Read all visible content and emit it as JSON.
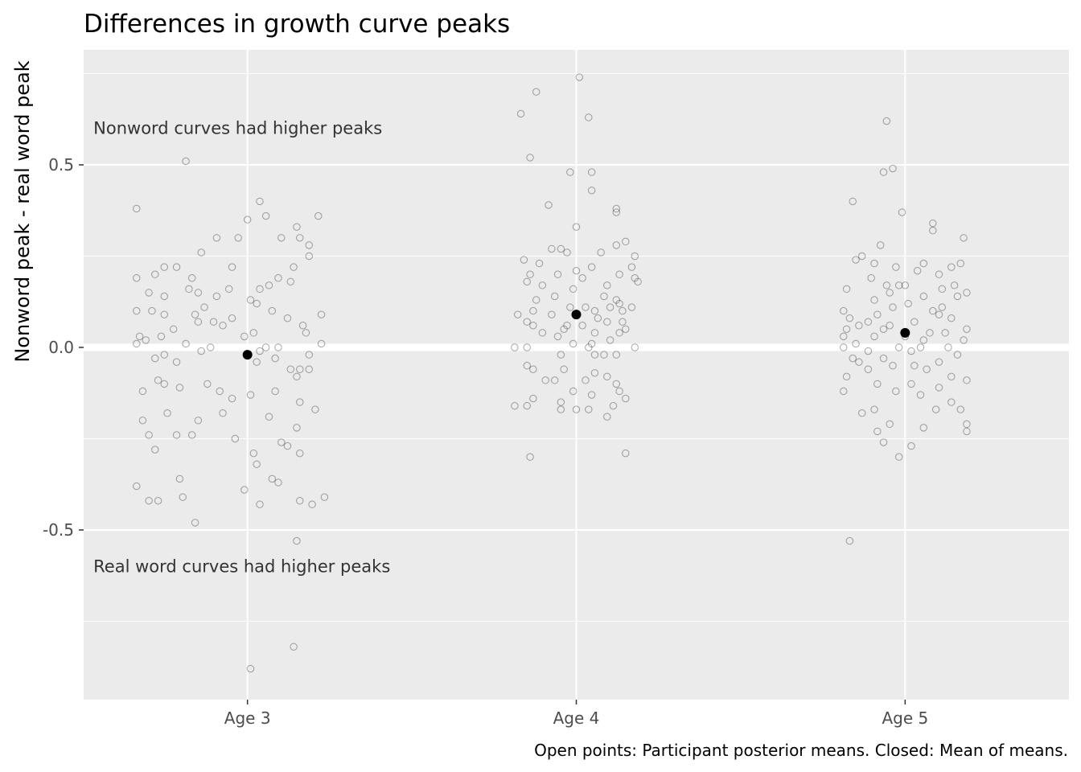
{
  "chart_data": {
    "type": "scatter",
    "title": "Differences in growth curve peaks",
    "ylabel": "Nonword peak - real word peak",
    "xlabel": "",
    "caption": "Open points: Participant posterior means. Closed: Mean of means.",
    "categories": [
      "Age 3",
      "Age 4",
      "Age 5"
    ],
    "ylim": [
      -0.97,
      0.82
    ],
    "yticks": [
      0.5,
      0.0,
      -0.5
    ],
    "ytick_labels": [
      "0.5",
      "0.0",
      "-0.5"
    ],
    "grid": true,
    "zero_line": true,
    "annotations": [
      {
        "text": "Nonword curves had higher peaks",
        "x": 0.5,
        "y": 0.6
      },
      {
        "text": "Real word curves had higher peaks",
        "x": 0.5,
        "y": -0.6
      }
    ],
    "summary_points": [
      {
        "category": "Age 3",
        "y": -0.02
      },
      {
        "category": "Age 4",
        "y": 0.09
      },
      {
        "category": "Age 5",
        "y": 0.04
      }
    ],
    "points": {
      "Age 3": [
        [
          -0.2,
          0.51
        ],
        [
          0.23,
          0.36
        ],
        [
          0.04,
          0.4
        ],
        [
          -0.36,
          0.38
        ],
        [
          -0.1,
          0.3
        ],
        [
          -0.15,
          0.26
        ],
        [
          0.16,
          0.33
        ],
        [
          0.17,
          0.3
        ],
        [
          0.2,
          0.25
        ],
        [
          0.06,
          0.36
        ],
        [
          0.0,
          0.35
        ],
        [
          -0.03,
          0.3
        ],
        [
          -0.27,
          0.22
        ],
        [
          -0.23,
          0.22
        ],
        [
          -0.3,
          0.2
        ],
        [
          -0.36,
          0.19
        ],
        [
          -0.18,
          0.19
        ],
        [
          -0.05,
          0.22
        ],
        [
          0.15,
          0.22
        ],
        [
          0.1,
          0.19
        ],
        [
          0.14,
          0.18
        ],
        [
          0.07,
          0.17
        ],
        [
          0.04,
          0.16
        ],
        [
          -0.06,
          0.16
        ],
        [
          -0.1,
          0.14
        ],
        [
          -0.16,
          0.15
        ],
        [
          -0.32,
          0.15
        ],
        [
          -0.27,
          0.14
        ],
        [
          -0.31,
          0.1
        ],
        [
          -0.27,
          0.09
        ],
        [
          -0.36,
          0.1
        ],
        [
          0.01,
          0.13
        ],
        [
          0.03,
          0.12
        ],
        [
          0.08,
          0.1
        ],
        [
          -0.14,
          0.11
        ],
        [
          -0.17,
          0.09
        ],
        [
          -0.11,
          0.07
        ],
        [
          -0.16,
          0.07
        ],
        [
          0.13,
          0.08
        ],
        [
          0.18,
          0.06
        ],
        [
          0.24,
          0.09
        ],
        [
          -0.05,
          0.08
        ],
        [
          -0.08,
          0.06
        ],
        [
          0.02,
          0.04
        ],
        [
          -0.01,
          0.03
        ],
        [
          -0.24,
          0.05
        ],
        [
          -0.28,
          0.03
        ],
        [
          -0.35,
          0.03
        ],
        [
          -0.33,
          0.02
        ],
        [
          -0.36,
          0.01
        ],
        [
          -0.2,
          0.01
        ],
        [
          0.19,
          0.04
        ],
        [
          0.24,
          0.01
        ],
        [
          0.06,
          0.0
        ],
        [
          0.1,
          0.0
        ],
        [
          -0.12,
          0.0
        ],
        [
          -0.15,
          -0.01
        ],
        [
          -0.27,
          -0.02
        ],
        [
          -0.3,
          -0.03
        ],
        [
          0.04,
          -0.01
        ],
        [
          0.09,
          -0.03
        ],
        [
          0.2,
          -0.02
        ],
        [
          -0.23,
          -0.04
        ],
        [
          0.03,
          -0.04
        ],
        [
          0.14,
          -0.06
        ],
        [
          0.17,
          -0.06
        ],
        [
          0.2,
          -0.06
        ],
        [
          -0.29,
          -0.09
        ],
        [
          -0.27,
          -0.1
        ],
        [
          -0.13,
          -0.1
        ],
        [
          -0.09,
          -0.12
        ],
        [
          -0.22,
          -0.11
        ],
        [
          -0.34,
          -0.12
        ],
        [
          0.09,
          -0.12
        ],
        [
          0.16,
          -0.08
        ],
        [
          0.22,
          -0.17
        ],
        [
          0.17,
          -0.15
        ],
        [
          -0.05,
          -0.14
        ],
        [
          0.01,
          -0.13
        ],
        [
          -0.26,
          -0.18
        ],
        [
          -0.16,
          -0.2
        ],
        [
          -0.08,
          -0.18
        ],
        [
          0.07,
          -0.19
        ],
        [
          0.16,
          -0.22
        ],
        [
          -0.34,
          -0.2
        ],
        [
          -0.32,
          -0.24
        ],
        [
          -0.23,
          -0.24
        ],
        [
          -0.18,
          -0.24
        ],
        [
          -0.04,
          -0.25
        ],
        [
          0.11,
          -0.26
        ],
        [
          0.13,
          -0.27
        ],
        [
          0.02,
          -0.29
        ],
        [
          0.03,
          -0.32
        ],
        [
          -0.3,
          -0.28
        ],
        [
          0.17,
          -0.29
        ],
        [
          -0.22,
          -0.36
        ],
        [
          -0.36,
          -0.38
        ],
        [
          -0.01,
          -0.39
        ],
        [
          0.08,
          -0.36
        ],
        [
          0.1,
          -0.37
        ],
        [
          -0.29,
          -0.42
        ],
        [
          -0.32,
          -0.42
        ],
        [
          0.21,
          -0.43
        ],
        [
          0.25,
          -0.41
        ],
        [
          0.17,
          -0.42
        ],
        [
          -0.17,
          -0.48
        ],
        [
          0.04,
          -0.43
        ],
        [
          0.16,
          -0.53
        ],
        [
          0.15,
          -0.82
        ],
        [
          0.01,
          -0.88
        ],
        [
          -0.21,
          -0.41
        ],
        [
          -0.19,
          0.16
        ],
        [
          0.11,
          0.3
        ],
        [
          0.2,
          0.28
        ]
      ],
      "Age 4": [
        [
          -0.13,
          0.7
        ],
        [
          0.01,
          0.74
        ],
        [
          -0.18,
          0.64
        ],
        [
          0.04,
          0.63
        ],
        [
          -0.15,
          0.52
        ],
        [
          -0.02,
          0.48
        ],
        [
          0.05,
          0.48
        ],
        [
          0.05,
          0.43
        ],
        [
          -0.09,
          0.39
        ],
        [
          0.13,
          0.38
        ],
        [
          0.13,
          0.37
        ],
        [
          0.0,
          0.33
        ],
        [
          0.16,
          0.29
        ],
        [
          0.13,
          0.28
        ],
        [
          -0.08,
          0.27
        ],
        [
          -0.05,
          0.27
        ],
        [
          -0.17,
          0.24
        ],
        [
          -0.12,
          0.23
        ],
        [
          -0.03,
          0.26
        ],
        [
          0.08,
          0.26
        ],
        [
          0.19,
          0.25
        ],
        [
          0.18,
          0.22
        ],
        [
          0.05,
          0.22
        ],
        [
          0.0,
          0.21
        ],
        [
          -0.15,
          0.2
        ],
        [
          -0.06,
          0.2
        ],
        [
          0.14,
          0.2
        ],
        [
          0.19,
          0.19
        ],
        [
          0.2,
          0.18
        ],
        [
          -0.16,
          0.18
        ],
        [
          -0.11,
          0.17
        ],
        [
          0.02,
          0.19
        ],
        [
          0.1,
          0.17
        ],
        [
          -0.01,
          0.16
        ],
        [
          0.09,
          0.14
        ],
        [
          0.13,
          0.13
        ],
        [
          -0.07,
          0.14
        ],
        [
          -0.13,
          0.13
        ],
        [
          0.14,
          0.12
        ],
        [
          0.03,
          0.11
        ],
        [
          0.06,
          0.1
        ],
        [
          0.11,
          0.11
        ],
        [
          -0.02,
          0.11
        ],
        [
          -0.14,
          0.1
        ],
        [
          -0.19,
          0.09
        ],
        [
          0.15,
          0.1
        ],
        [
          -0.08,
          0.09
        ],
        [
          -0.16,
          0.07
        ],
        [
          -0.14,
          0.06
        ],
        [
          0.07,
          0.08
        ],
        [
          0.1,
          0.07
        ],
        [
          0.02,
          0.06
        ],
        [
          -0.04,
          0.05
        ],
        [
          0.16,
          0.05
        ],
        [
          -0.11,
          0.04
        ],
        [
          0.06,
          0.04
        ],
        [
          0.14,
          0.04
        ],
        [
          -0.06,
          0.03
        ],
        [
          0.11,
          0.02
        ],
        [
          -0.01,
          0.01
        ],
        [
          0.05,
          0.01
        ],
        [
          -0.2,
          0.0
        ],
        [
          -0.16,
          0.0
        ],
        [
          0.04,
          0.0
        ],
        [
          0.19,
          0.0
        ],
        [
          0.09,
          -0.02
        ],
        [
          -0.05,
          -0.02
        ],
        [
          0.13,
          -0.02
        ],
        [
          -0.16,
          -0.05
        ],
        [
          -0.14,
          -0.06
        ],
        [
          -0.04,
          -0.06
        ],
        [
          0.06,
          -0.07
        ],
        [
          0.1,
          -0.08
        ],
        [
          -0.1,
          -0.09
        ],
        [
          -0.07,
          -0.09
        ],
        [
          0.03,
          -0.09
        ],
        [
          0.13,
          -0.1
        ],
        [
          -0.01,
          -0.12
        ],
        [
          0.05,
          -0.13
        ],
        [
          0.14,
          -0.12
        ],
        [
          -0.14,
          -0.14
        ],
        [
          0.16,
          -0.14
        ],
        [
          -0.05,
          -0.15
        ],
        [
          0.12,
          -0.16
        ],
        [
          -0.2,
          -0.16
        ],
        [
          -0.16,
          -0.16
        ],
        [
          -0.05,
          -0.17
        ],
        [
          0.0,
          -0.17
        ],
        [
          0.04,
          -0.17
        ],
        [
          0.1,
          -0.19
        ],
        [
          -0.15,
          -0.3
        ],
        [
          0.16,
          -0.29
        ],
        [
          0.06,
          -0.02
        ],
        [
          0.15,
          0.07
        ],
        [
          0.18,
          0.11
        ],
        [
          -0.03,
          0.06
        ]
      ],
      "Age 5": [
        [
          -0.06,
          0.62
        ],
        [
          -0.04,
          0.49
        ],
        [
          -0.07,
          0.48
        ],
        [
          -0.17,
          0.4
        ],
        [
          0.09,
          0.34
        ],
        [
          -0.01,
          0.37
        ],
        [
          0.09,
          0.32
        ],
        [
          0.19,
          0.3
        ],
        [
          -0.08,
          0.28
        ],
        [
          -0.14,
          0.25
        ],
        [
          -0.16,
          0.24
        ],
        [
          -0.1,
          0.23
        ],
        [
          0.06,
          0.23
        ],
        [
          0.18,
          0.23
        ],
        [
          -0.03,
          0.22
        ],
        [
          0.15,
          0.22
        ],
        [
          -0.11,
          0.19
        ],
        [
          -0.06,
          0.17
        ],
        [
          0.04,
          0.21
        ],
        [
          0.11,
          0.2
        ],
        [
          -0.05,
          0.15
        ],
        [
          -0.02,
          0.17
        ],
        [
          0.12,
          0.16
        ],
        [
          0.16,
          0.17
        ],
        [
          -0.19,
          0.16
        ],
        [
          -0.1,
          0.13
        ],
        [
          0.06,
          0.14
        ],
        [
          0.2,
          0.15
        ],
        [
          0.17,
          0.14
        ],
        [
          -0.04,
          0.11
        ],
        [
          0.01,
          0.12
        ],
        [
          0.09,
          0.1
        ],
        [
          -0.2,
          0.1
        ],
        [
          -0.18,
          0.08
        ],
        [
          -0.09,
          0.09
        ],
        [
          0.11,
          0.09
        ],
        [
          0.15,
          0.08
        ],
        [
          -0.12,
          0.07
        ],
        [
          -0.05,
          0.06
        ],
        [
          0.03,
          0.07
        ],
        [
          -0.15,
          0.06
        ],
        [
          -0.19,
          0.05
        ],
        [
          -0.07,
          0.05
        ],
        [
          0.2,
          0.05
        ],
        [
          0.08,
          0.04
        ],
        [
          0.13,
          0.04
        ],
        [
          -0.2,
          0.03
        ],
        [
          -0.1,
          0.03
        ],
        [
          0.0,
          0.03
        ],
        [
          0.19,
          0.02
        ],
        [
          -0.16,
          0.01
        ],
        [
          0.06,
          0.02
        ],
        [
          -0.02,
          0.0
        ],
        [
          -0.2,
          0.0
        ],
        [
          0.14,
          0.0
        ],
        [
          -0.12,
          -0.01
        ],
        [
          0.02,
          -0.01
        ],
        [
          0.17,
          -0.02
        ],
        [
          -0.17,
          -0.03
        ],
        [
          -0.07,
          -0.03
        ],
        [
          0.11,
          -0.04
        ],
        [
          -0.04,
          -0.05
        ],
        [
          0.03,
          -0.05
        ],
        [
          -0.12,
          -0.06
        ],
        [
          0.07,
          -0.06
        ],
        [
          -0.19,
          -0.08
        ],
        [
          0.15,
          -0.08
        ],
        [
          0.2,
          -0.09
        ],
        [
          -0.09,
          -0.1
        ],
        [
          0.02,
          -0.1
        ],
        [
          -0.2,
          -0.12
        ],
        [
          -0.03,
          -0.12
        ],
        [
          0.05,
          -0.13
        ],
        [
          0.11,
          -0.11
        ],
        [
          0.15,
          -0.15
        ],
        [
          -0.1,
          -0.17
        ],
        [
          0.18,
          -0.17
        ],
        [
          -0.14,
          -0.18
        ],
        [
          0.1,
          -0.17
        ],
        [
          -0.05,
          -0.21
        ],
        [
          0.2,
          -0.21
        ],
        [
          0.06,
          -0.22
        ],
        [
          -0.09,
          -0.23
        ],
        [
          -0.07,
          -0.26
        ],
        [
          0.02,
          -0.27
        ],
        [
          -0.02,
          -0.3
        ],
        [
          -0.18,
          -0.53
        ],
        [
          0.2,
          -0.23
        ],
        [
          0.05,
          0.0
        ],
        [
          -0.15,
          -0.04
        ],
        [
          0.12,
          0.11
        ],
        [
          0.0,
          0.17
        ]
      ]
    }
  }
}
